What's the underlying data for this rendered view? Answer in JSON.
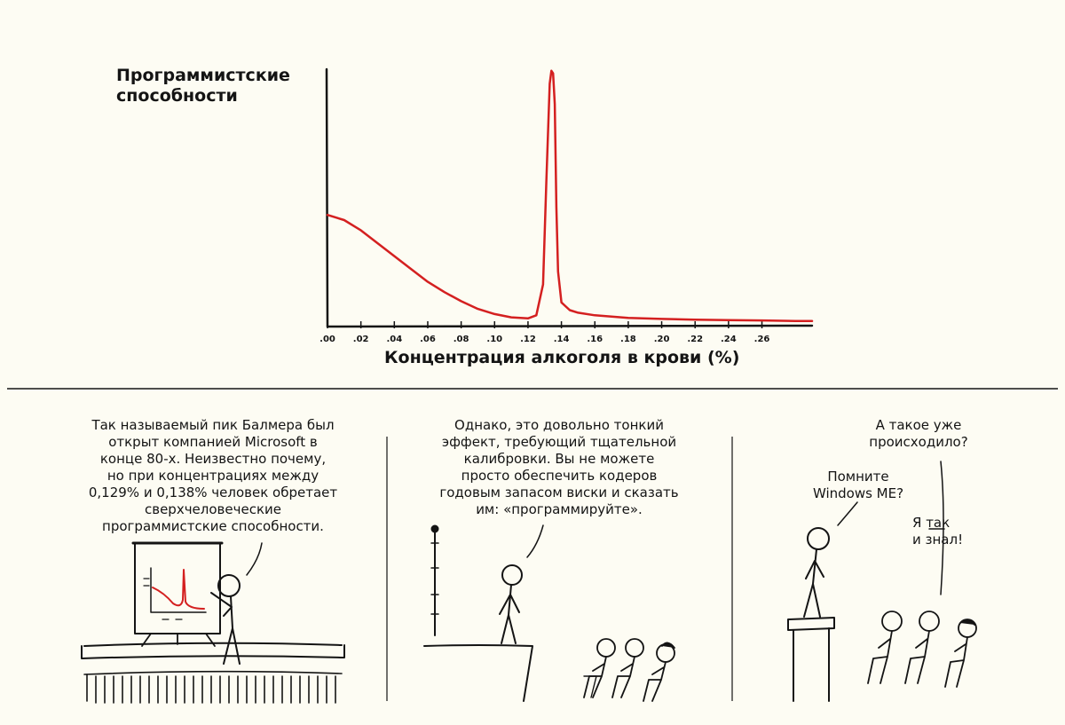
{
  "chart_data": {
    "type": "line",
    "ylabel": "Программистские\nспособности",
    "xlabel": "Концентрация алкоголя в крови (%)",
    "x_ticks": [
      ".00",
      ".02",
      ".04",
      ".06",
      ".08",
      ".10",
      ".12",
      ".14",
      ".16",
      ".18",
      ".20",
      ".22",
      ".24",
      ".26"
    ],
    "xlim": [
      0,
      0.29
    ],
    "ylim": [
      0,
      1
    ],
    "series": [
      {
        "color": "#d42020",
        "x": [
          0,
          0.01,
          0.02,
          0.03,
          0.04,
          0.05,
          0.06,
          0.07,
          0.08,
          0.09,
          0.1,
          0.11,
          0.12,
          0.125,
          0.129,
          0.131,
          0.133,
          0.134,
          0.135,
          0.136,
          0.137,
          0.138,
          0.14,
          0.145,
          0.15,
          0.16,
          0.18,
          0.2,
          0.22,
          0.24,
          0.26,
          0.28,
          0.29
        ],
        "y": [
          0.42,
          0.4,
          0.36,
          0.31,
          0.26,
          0.21,
          0.16,
          0.12,
          0.085,
          0.055,
          0.035,
          0.022,
          0.018,
          0.03,
          0.15,
          0.55,
          0.93,
          0.98,
          0.97,
          0.85,
          0.45,
          0.2,
          0.08,
          0.05,
          0.04,
          0.03,
          0.02,
          0.016,
          0.013,
          0.011,
          0.01,
          0.008,
          0.008
        ]
      }
    ],
    "grid": false
  },
  "panels": [
    {
      "caption": "Так называемый пик Балмера был\nоткрыт компанией Microsoft в\nконце 80-х. Неизвестно почему,\nно при концентрациях между\n0,129% и 0,138% человек обретает\nсверхчеловеческие\nпрограммистские способности."
    },
    {
      "caption": "Однако, это довольно тонкий\nэффект, требующий тщательной\nкалибровки. Вы не можете\nпросто обеспечить кодеров\nгодовым запасом виски и сказать\nим: «программируйте»."
    },
    {
      "caption": "А такое уже\nпроисходило?",
      "speaker_bubble": "Помните\nWindows ME?",
      "audience_bubble": "Я так\nи знал!"
    }
  ],
  "colors": {
    "ink": "#141414",
    "curve": "#d42020",
    "background": "#fdfcf3"
  }
}
